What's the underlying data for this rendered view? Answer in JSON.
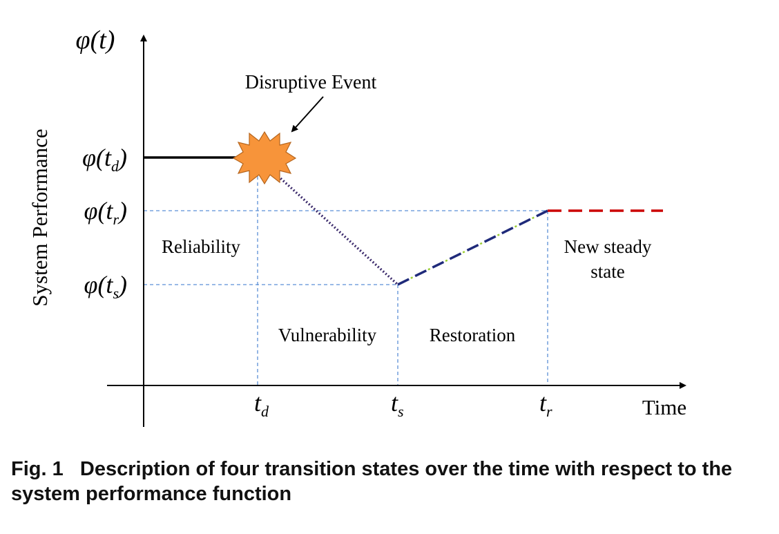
{
  "figure": {
    "y_axis_symbol": "φ(t)",
    "y_axis_label": "System Performance",
    "x_axis_label": "Time",
    "y_ticks": {
      "phi_td": {
        "phi": "φ(t",
        "sub": "d",
        "close": ")"
      },
      "phi_tr": {
        "phi": "φ(t",
        "sub": "r",
        "close": ")"
      },
      "phi_ts": {
        "phi": "φ(t",
        "sub": "s",
        "close": ")"
      }
    },
    "x_ticks": {
      "td": {
        "t": "t",
        "sub": "d"
      },
      "ts": {
        "t": "t",
        "sub": "s"
      },
      "tr": {
        "t": "t",
        "sub": "r"
      }
    },
    "annotations": {
      "event": "Disruptive Event",
      "reliability": "Reliability",
      "vulnerability": "Vulnerability",
      "restoration": "Restoration",
      "new_state_line1": "New steady",
      "new_state_line2": "state"
    },
    "colors": {
      "reliability_line": "#000000",
      "vulnerability_line": "#3b2a6b",
      "restoration_line": "#1f2a7a",
      "restoration_accent": "#9acd32",
      "new_state_line": "#cc0000",
      "guide_lines": "#5b8fd6",
      "event_fill": "#f7943a",
      "event_stroke": "#b5651d"
    }
  },
  "caption": {
    "label": "Fig. 1",
    "text": "Description of four transition states over the time with respect to the system performance function"
  }
}
